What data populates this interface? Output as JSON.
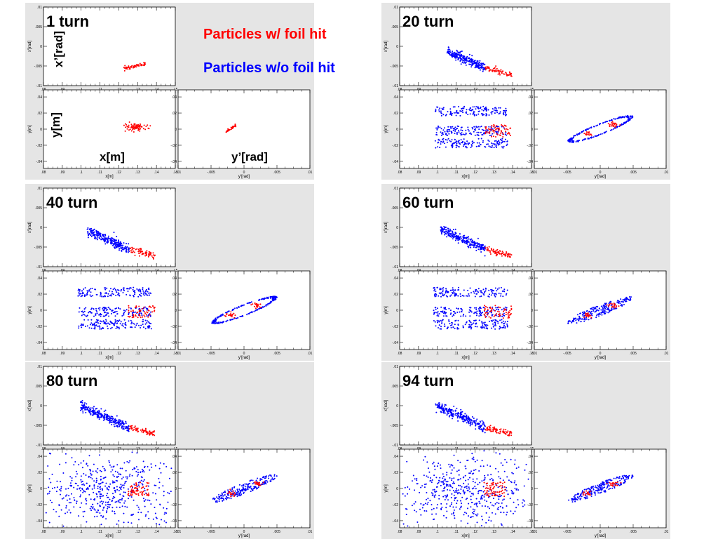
{
  "legend": {
    "hit": {
      "label": "Particles w/ foil hit",
      "color": "#ff0000"
    },
    "nohit": {
      "label": "Particles w/o foil hit",
      "color": "#0000ff"
    }
  },
  "big_labels": {
    "xprime": "x’[rad]",
    "y": "y[m]",
    "x": "x[m]",
    "yprime": "y’[rad]"
  },
  "chart_data": {
    "type": "scatter",
    "axes": {
      "xx": {
        "xlabel": "x[m]",
        "ylabel": "x'[rad]",
        "xlim": [
          0.08,
          0.15
        ],
        "ylim": [
          -0.01,
          0.01
        ],
        "xticks": [
          ".08",
          ".09",
          ".1",
          ".11",
          ".12",
          ".13",
          ".14",
          ".15"
        ],
        "yticks": [
          ".01",
          ".005",
          "0",
          "-.005",
          "-.01"
        ]
      },
      "xy": {
        "xlabel": "x[m]",
        "ylabel": "y[m]",
        "xlim": [
          0.08,
          0.15
        ],
        "ylim": [
          -0.05,
          0.05
        ],
        "xticks": [
          ".08",
          ".09",
          ".1",
          ".11",
          ".12",
          ".13",
          ".14",
          ".15"
        ],
        "yticks": [
          ".04",
          ".02",
          "0",
          "-.02",
          "-.04"
        ]
      },
      "yy": {
        "xlabel": "y'[rad]",
        "ylabel": "",
        "xlim": [
          -0.01,
          0.01
        ],
        "ylim": [
          -0.05,
          0.05
        ],
        "xticks": [
          "-.01",
          "-.005",
          "0",
          ".005",
          ".01"
        ],
        "yticks": [
          ".04",
          ".02",
          "0",
          "-.02",
          "-.04"
        ]
      }
    },
    "series_names": [
      "Particles w/ foil hit",
      "Particles w/o foil hit"
    ],
    "panels": [
      {
        "label": "1 turn",
        "blue": false,
        "ylab2": true,
        "mode": 0
      },
      {
        "label": "20 turn",
        "blue": true,
        "ylab2": true,
        "mode": 1
      },
      {
        "label": "40 turn",
        "blue": true,
        "ylab2": true,
        "mode": 2
      },
      {
        "label": "60 turn",
        "blue": true,
        "ylab2": true,
        "mode": 3
      },
      {
        "label": "80 turn",
        "blue": true,
        "ylab2": false,
        "mode": 4
      },
      {
        "label": "94 turn",
        "blue": true,
        "ylab2": false,
        "mode": 5
      }
    ]
  }
}
